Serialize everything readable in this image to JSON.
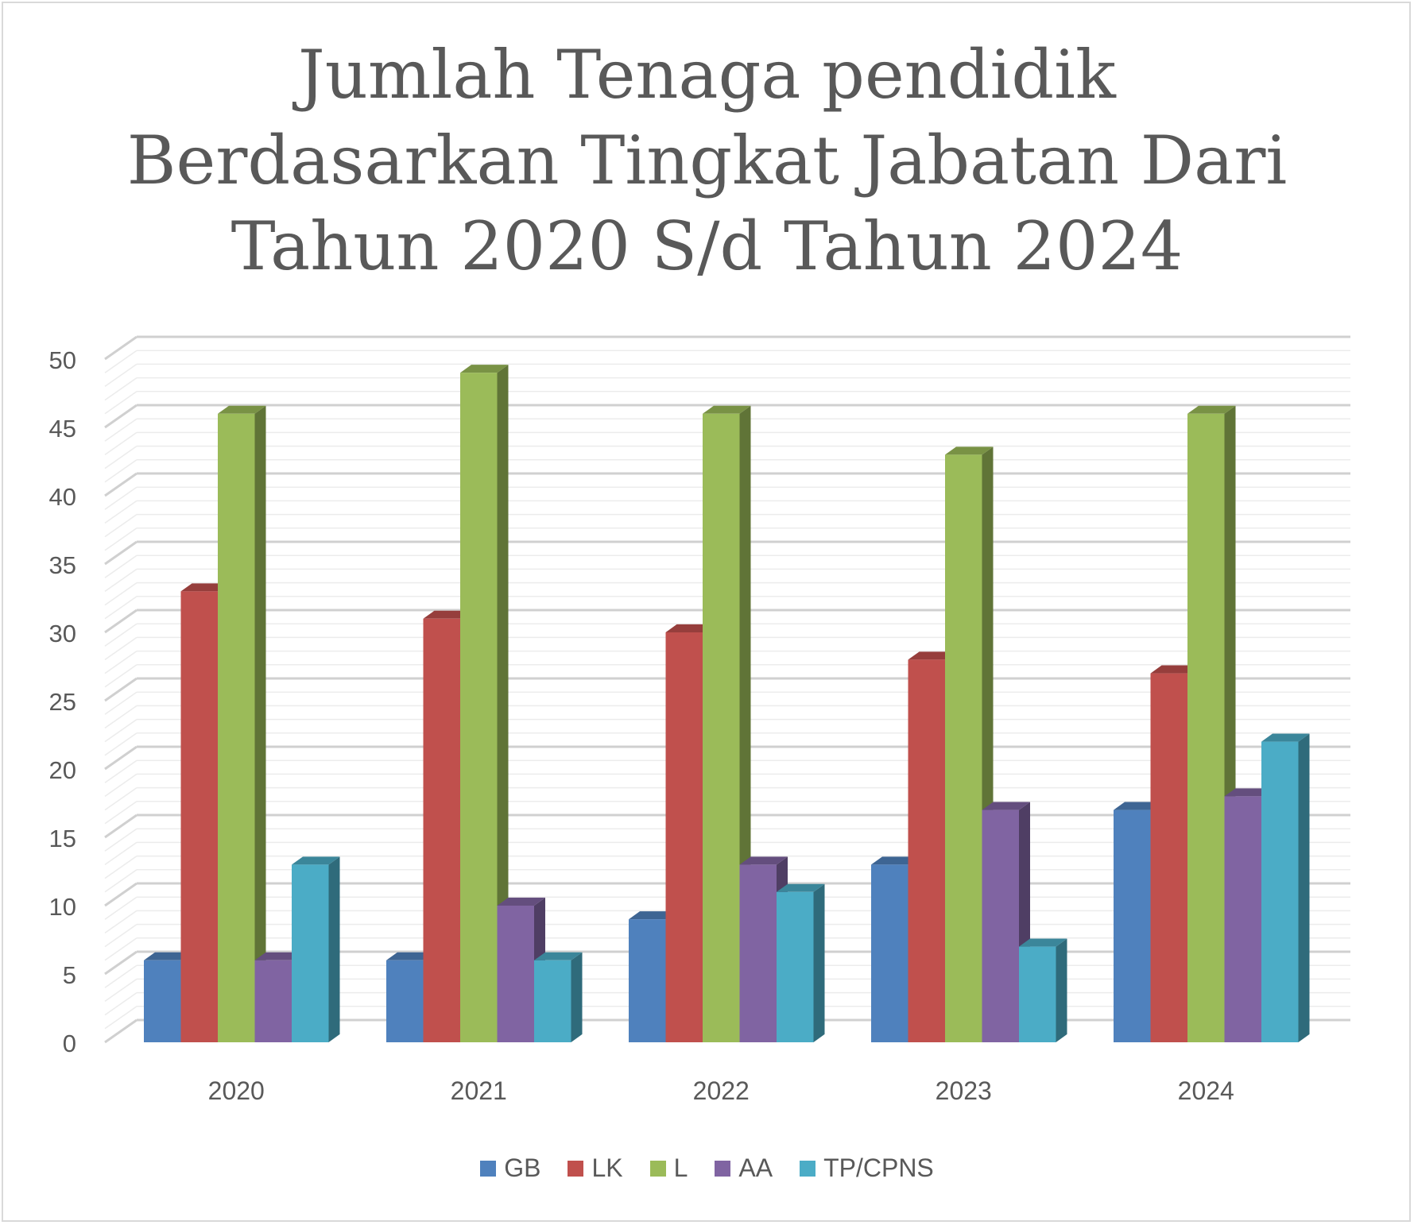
{
  "chart_data": {
    "type": "bar",
    "title_lines": [
      "Jumlah Tenaga pendidik",
      "Berdasarkan Tingkat Jabatan Dari",
      "Tahun 2020 S/d Tahun 2024"
    ],
    "categories": [
      "2020",
      "2021",
      "2022",
      "2023",
      "2024"
    ],
    "series": [
      {
        "name": "GB",
        "color": "#4f81bd",
        "values": [
          6,
          6,
          9,
          13,
          17
        ]
      },
      {
        "name": "LK",
        "color": "#c0504d",
        "values": [
          33,
          31,
          30,
          28,
          27
        ]
      },
      {
        "name": "L",
        "color": "#9bbb59",
        "values": [
          46,
          49,
          46,
          43,
          46
        ]
      },
      {
        "name": "AA",
        "color": "#8064a2",
        "values": [
          6,
          10,
          13,
          17,
          18
        ]
      },
      {
        "name": "TP/CPNS",
        "color": "#4bacc6",
        "values": [
          13,
          6,
          11,
          7,
          22
        ]
      }
    ],
    "ylim": [
      0,
      50
    ],
    "yticks": [
      0,
      5,
      10,
      15,
      20,
      25,
      30,
      35,
      40,
      45,
      50
    ],
    "grid": true,
    "legend_position": "bottom",
    "style": "3d-clustered-column"
  }
}
